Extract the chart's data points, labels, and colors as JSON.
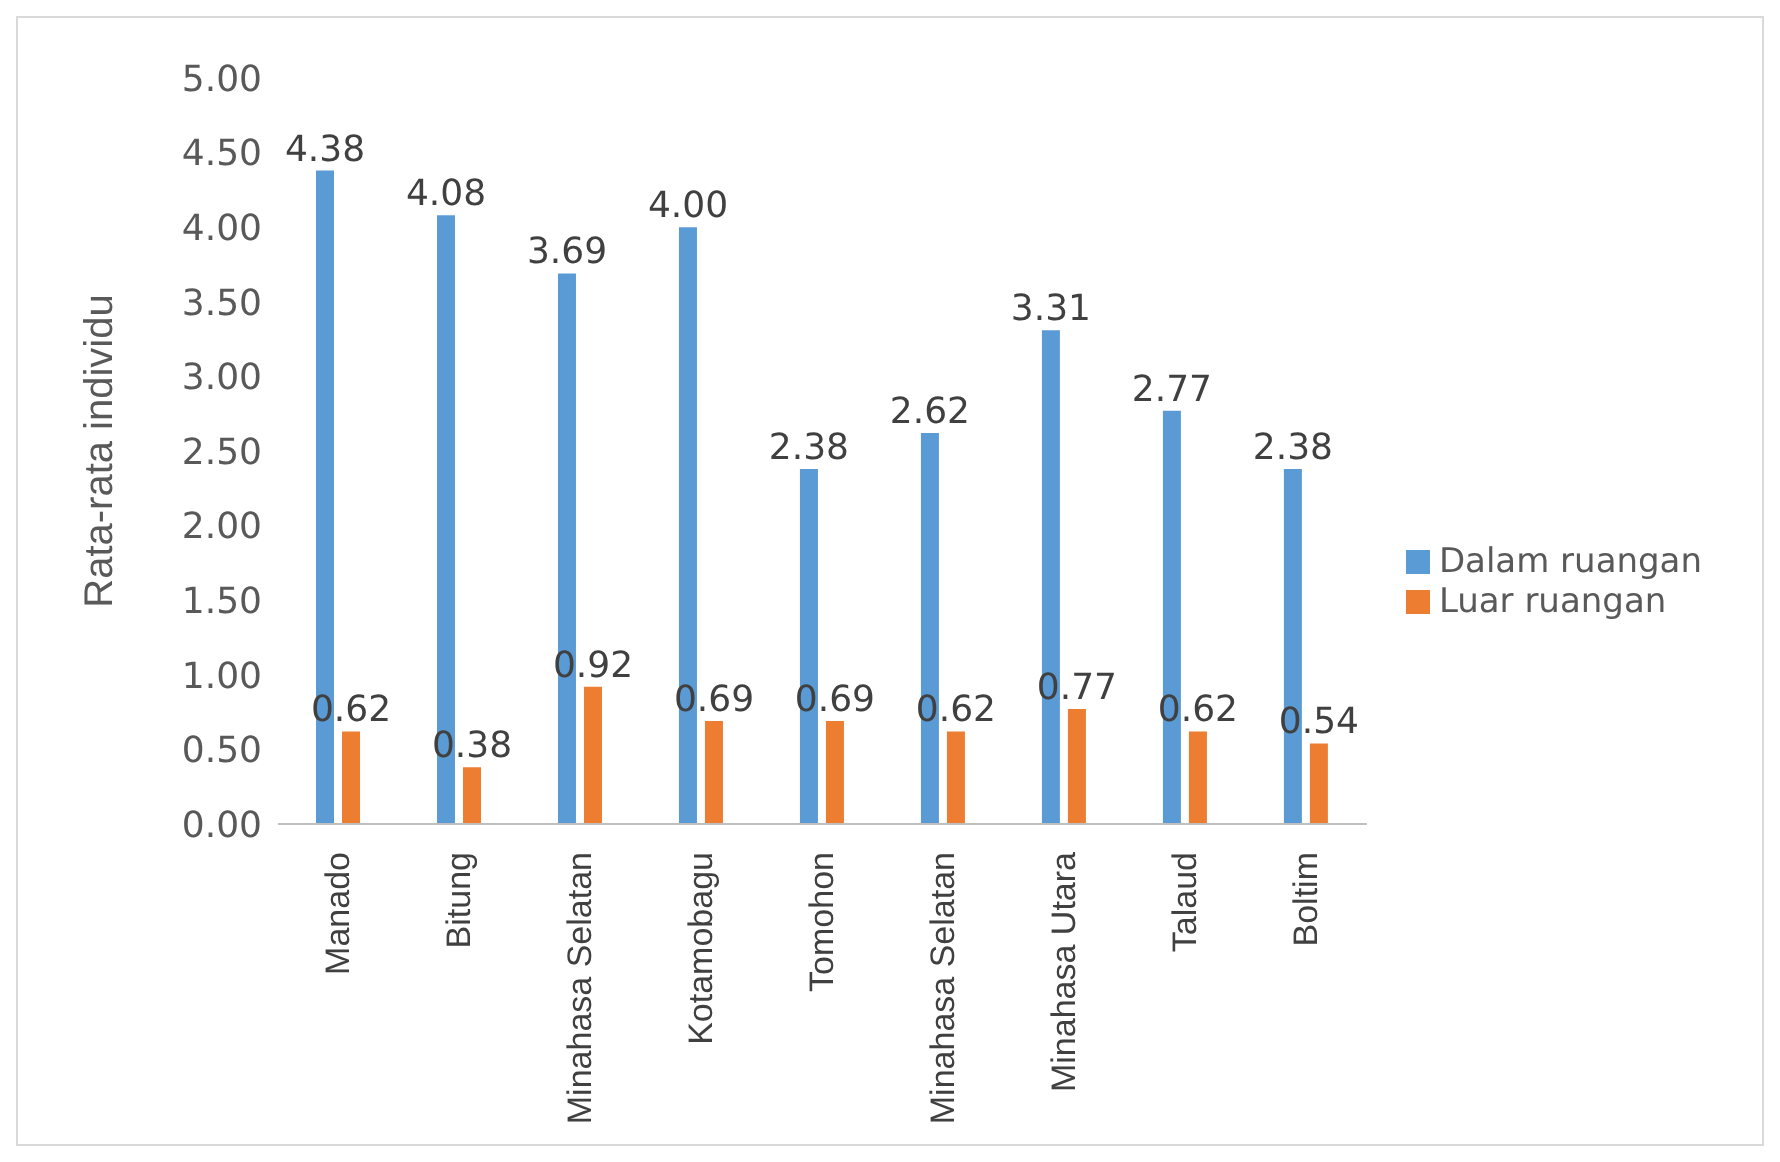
{
  "chart_data": {
    "type": "bar",
    "ylabel": "Rata-rata individu",
    "categories": [
      "Manado",
      "Bitung",
      "Minahasa Selatan",
      "Kotamobagu",
      "Tomohon",
      "Minahasa Selatan",
      "Minahasa Utara",
      "Talaud",
      "Boltim"
    ],
    "series": [
      {
        "name": "Dalam ruangan",
        "color": "#5b9bd5",
        "values": [
          4.38,
          4.08,
          3.69,
          4.0,
          2.38,
          2.62,
          3.31,
          2.77,
          2.38
        ],
        "value_labels": [
          "4.38",
          "4.08",
          "3.69",
          "4.00",
          "2.38",
          "2.62",
          "3.31",
          "2.77",
          "2.38"
        ]
      },
      {
        "name": "Luar ruangan",
        "color": "#ed7d31",
        "values": [
          0.62,
          0.38,
          0.92,
          0.69,
          0.69,
          0.62,
          0.77,
          0.62,
          0.54
        ],
        "value_labels": [
          "0.62",
          "0.38",
          "0.92",
          "0.69",
          "0.69",
          "0.62",
          "0.77",
          "0.62",
          "0.54"
        ]
      }
    ],
    "ylim": [
      0,
      5
    ],
    "yticks": [
      {
        "value": 0,
        "label": "0.00"
      },
      {
        "value": 0.5,
        "label": "0.50"
      },
      {
        "value": 1,
        "label": "1.00"
      },
      {
        "value": 1.5,
        "label": "1.50"
      },
      {
        "value": 2,
        "label": "2.00"
      },
      {
        "value": 2.5,
        "label": "2.50"
      },
      {
        "value": 3,
        "label": "3.00"
      },
      {
        "value": 3.5,
        "label": "3.50"
      },
      {
        "value": 4,
        "label": "4.00"
      },
      {
        "value": 4.5,
        "label": "4.50"
      },
      {
        "value": 5,
        "label": "5.00"
      }
    ],
    "grid": false,
    "legend": "right"
  }
}
